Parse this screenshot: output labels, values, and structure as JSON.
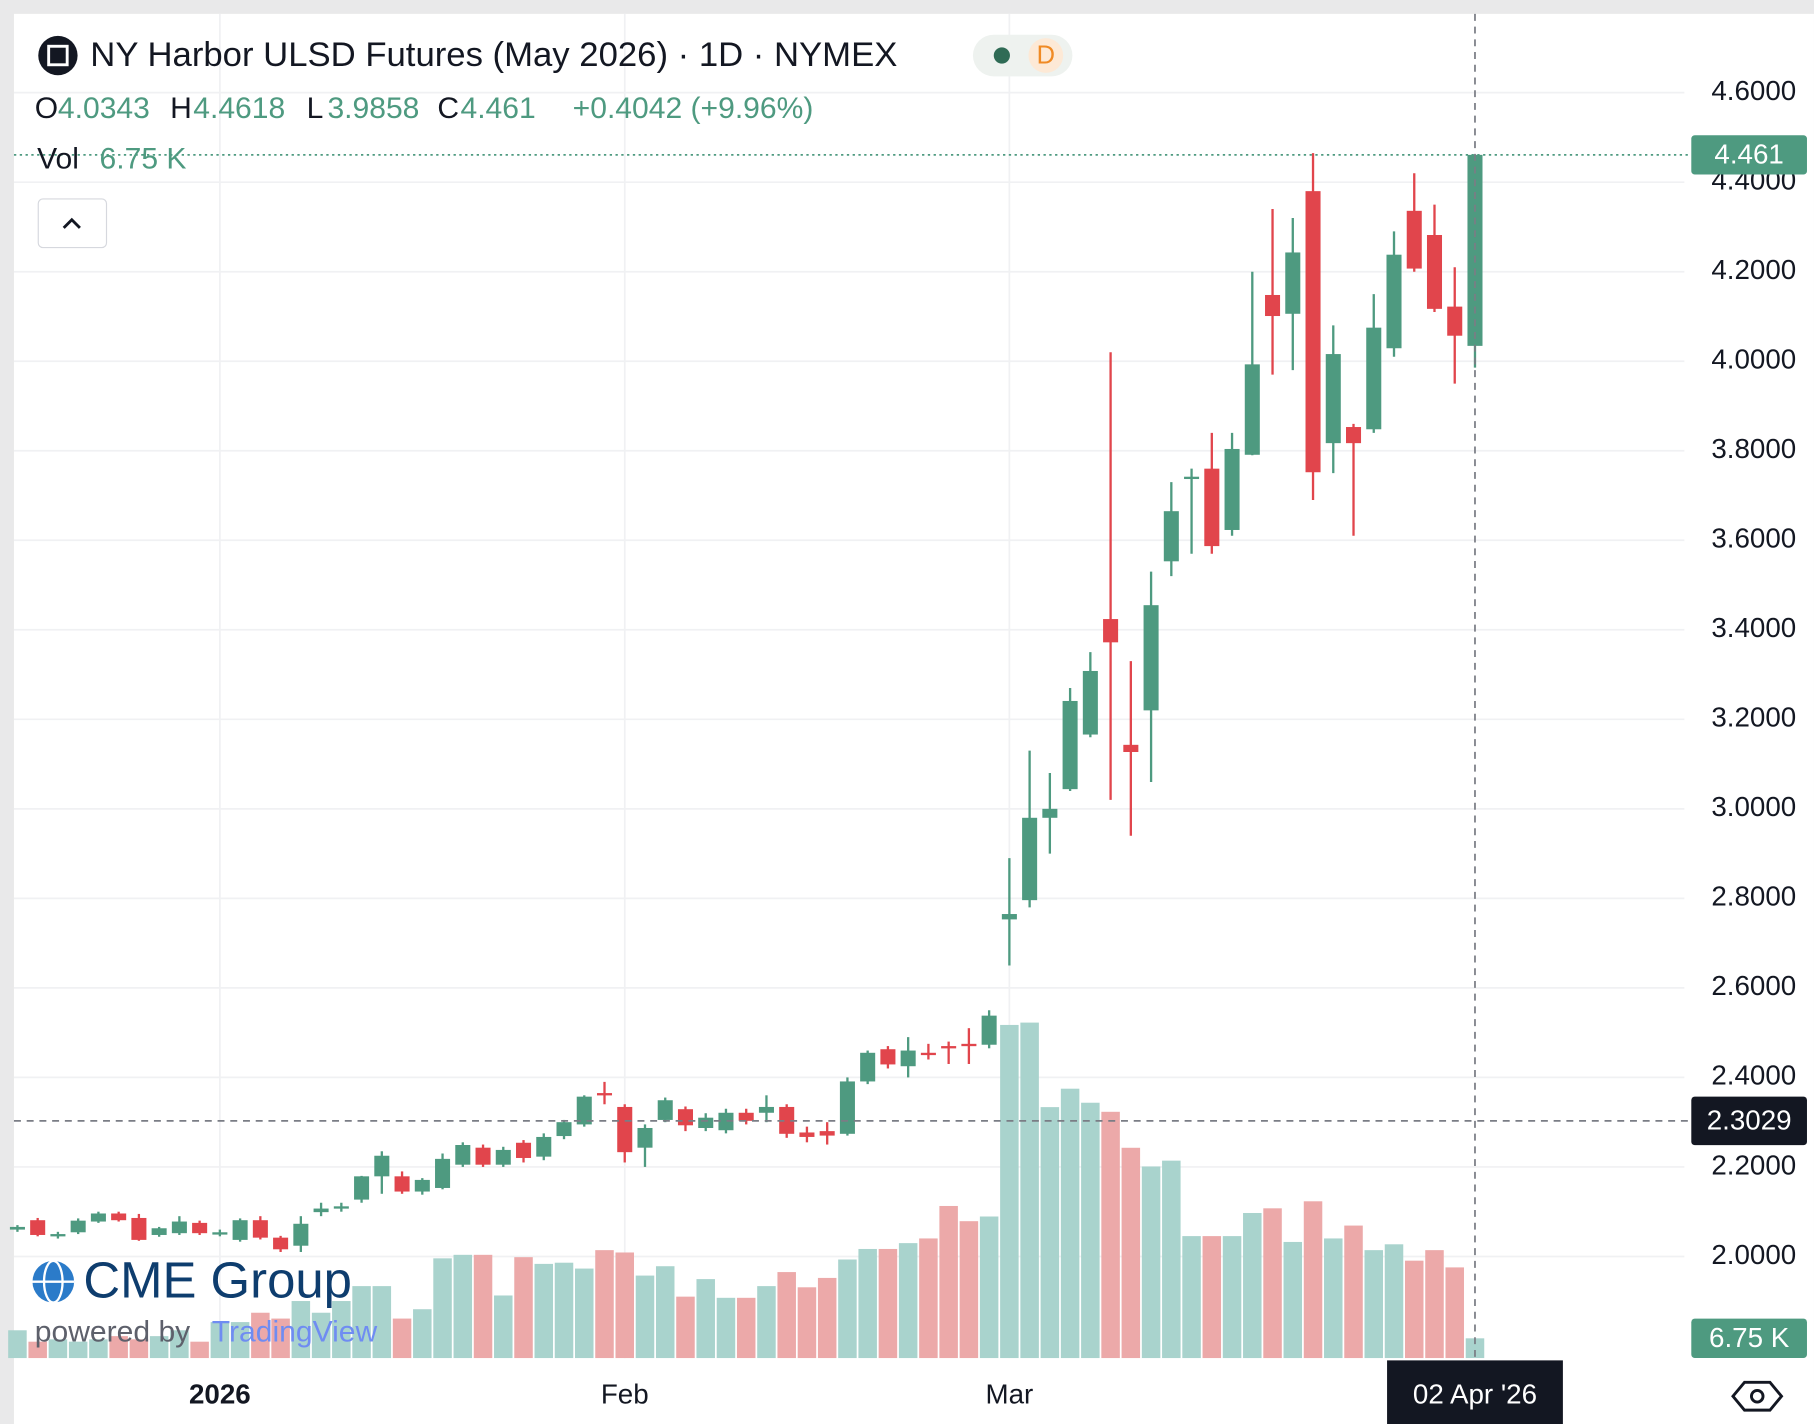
{
  "header": {
    "title": "NY Harbor ULSD Futures (May 2026) · 1D · NYMEX",
    "badge": "D"
  },
  "legend": {
    "open_label": "O",
    "high_label": "H",
    "low_label": "L",
    "close_label": "C",
    "change": "+0.4042 (+9.96%)",
    "volume_label": "Vol",
    "volume": "6.75 K"
  },
  "branding": {
    "logo": "CME Group",
    "powered_by": "powered by",
    "platform": "TradingView"
  },
  "chart_data": {
    "type": "candlestick",
    "categories": [
      null,
      null,
      null,
      null,
      null,
      null,
      null,
      null,
      null,
      null,
      "2026",
      null,
      null,
      null,
      null,
      null,
      null,
      null,
      null,
      null,
      null,
      null,
      null,
      null,
      null,
      null,
      null,
      null,
      null,
      null,
      "Feb",
      null,
      null,
      null,
      null,
      null,
      null,
      null,
      null,
      null,
      null,
      null,
      null,
      null,
      null,
      null,
      null,
      null,
      null,
      "Mar",
      null,
      null,
      null,
      null,
      null,
      null,
      null,
      null,
      null,
      null,
      null,
      null,
      null,
      null,
      null,
      null,
      null,
      null,
      null,
      null,
      null,
      null,
      "02 Apr '26"
    ],
    "open": [
      2.06,
      2.081,
      2.048,
      2.054,
      2.078,
      2.096,
      2.086,
      2.048,
      2.052,
      2.075,
      2.052,
      2.037,
      2.081,
      2.042,
      2.024,
      2.099,
      2.107,
      2.127,
      2.179,
      2.179,
      2.145,
      2.153,
      2.205,
      2.243,
      2.205,
      2.254,
      2.223,
      2.269,
      2.295,
      2.365,
      2.334,
      2.243,
      2.305,
      2.329,
      2.287,
      2.282,
      2.321,
      2.321,
      2.334,
      2.277,
      2.28,
      2.274,
      2.391,
      2.463,
      2.425,
      2.455,
      2.47,
      2.475,
      2.473,
      2.753,
      2.796,
      2.98,
      3.044,
      3.166,
      3.424,
      3.143,
      3.22,
      3.553,
      3.74,
      3.76,
      3.623,
      3.791,
      4.148,
      4.106,
      4.38,
      3.817,
      3.853,
      3.848,
      4.029,
      4.336,
      4.282,
      4.122,
      4.0343
    ],
    "high": [
      2.07,
      2.086,
      2.055,
      2.085,
      2.1,
      2.1,
      2.095,
      2.066,
      2.09,
      2.08,
      2.06,
      2.085,
      2.09,
      2.046,
      2.09,
      2.12,
      2.12,
      2.18,
      2.235,
      2.19,
      2.175,
      2.23,
      2.255,
      2.25,
      2.245,
      2.26,
      2.275,
      2.305,
      2.36,
      2.39,
      2.34,
      2.295,
      2.355,
      2.335,
      2.32,
      2.33,
      2.33,
      2.36,
      2.34,
      2.29,
      2.3,
      2.4,
      2.46,
      2.47,
      2.49,
      2.475,
      2.48,
      2.51,
      2.55,
      2.89,
      3.13,
      3.08,
      3.27,
      3.35,
      4.02,
      3.33,
      3.53,
      3.73,
      3.76,
      3.84,
      3.84,
      4.2,
      4.34,
      4.32,
      4.465,
      4.08,
      3.86,
      4.15,
      4.29,
      4.42,
      4.35,
      4.21,
      4.4618
    ],
    "low": [
      2.055,
      2.045,
      2.04,
      2.05,
      2.075,
      2.078,
      2.035,
      2.044,
      2.048,
      2.048,
      2.045,
      2.033,
      2.038,
      2.01,
      2.01,
      2.09,
      2.1,
      2.12,
      2.14,
      2.14,
      2.138,
      2.15,
      2.2,
      2.2,
      2.2,
      2.21,
      2.215,
      2.262,
      2.29,
      2.34,
      2.21,
      2.2,
      2.3,
      2.28,
      2.28,
      2.275,
      2.295,
      2.3,
      2.265,
      2.255,
      2.25,
      2.27,
      2.385,
      2.42,
      2.4,
      2.44,
      2.43,
      2.43,
      2.465,
      2.65,
      2.78,
      2.9,
      3.04,
      3.16,
      3.02,
      2.94,
      3.06,
      3.52,
      3.57,
      3.57,
      3.61,
      3.79,
      3.97,
      3.98,
      3.69,
      3.75,
      3.61,
      3.84,
      4.01,
      4.2,
      4.11,
      3.95,
      3.9858
    ],
    "close": [
      2.066,
      2.048,
      2.05,
      2.08,
      2.096,
      2.081,
      2.037,
      2.063,
      2.078,
      2.052,
      2.054,
      2.081,
      2.042,
      2.016,
      2.073,
      2.107,
      2.112,
      2.179,
      2.225,
      2.145,
      2.171,
      2.218,
      2.249,
      2.205,
      2.238,
      2.22,
      2.267,
      2.3,
      2.357,
      2.36,
      2.233,
      2.287,
      2.349,
      2.293,
      2.31,
      2.321,
      2.303,
      2.334,
      2.274,
      2.267,
      2.27,
      2.391,
      2.455,
      2.429,
      2.46,
      2.45,
      2.465,
      2.47,
      2.538,
      2.765,
      2.98,
      3.0,
      3.241,
      3.308,
      3.372,
      3.127,
      3.455,
      3.665,
      3.742,
      3.587,
      3.804,
      3.993,
      4.101,
      4.243,
      3.752,
      4.016,
      3.817,
      4.075,
      4.238,
      4.207,
      4.117,
      4.057,
      4.461
    ],
    "volume": [
      9.5,
      5.6,
      6.4,
      5.6,
      6.4,
      7.5,
      6.4,
      7.5,
      9.5,
      5.6,
      12.3,
      12.3,
      15.5,
      13.5,
      19.5,
      15.5,
      19.5,
      24.6,
      24.6,
      13.5,
      16.7,
      34.1,
      35.3,
      35.3,
      21.4,
      34.5,
      32.2,
      32.6,
      30.6,
      36.9,
      36.1,
      28.2,
      31.4,
      21.0,
      27.0,
      20.6,
      20.6,
      24.6,
      29.4,
      24.2,
      27.4,
      33.7,
      37.3,
      37.3,
      39.3,
      40.9,
      52.0,
      46.8,
      48.4,
      113.9,
      114.7,
      85.8,
      92.1,
      87.3,
      84.2,
      71.9,
      65.5,
      67.5,
      41.7,
      41.7,
      41.7,
      49.6,
      51.2,
      39.7,
      53.6,
      40.9,
      45.3,
      36.9,
      38.9,
      33.3,
      36.9,
      31.0,
      6.75
    ],
    "up_color": "#4e9a80",
    "down_color": "#e1454c",
    "up_volume_color": "#a9d3cd",
    "down_volume_color": "#eca9a9",
    "ylim": [
      1.773,
      4.776
    ],
    "yticks": [
      {
        "value": 2.0,
        "label": "2.0000"
      },
      {
        "value": 2.2,
        "label": "2.2000"
      },
      {
        "value": 2.4,
        "label": "2.4000"
      },
      {
        "value": 2.6,
        "label": "2.6000"
      },
      {
        "value": 2.8,
        "label": "2.8000"
      },
      {
        "value": 3.0,
        "label": "3.0000"
      },
      {
        "value": 3.2,
        "label": "3.2000"
      },
      {
        "value": 3.4,
        "label": "3.4000"
      },
      {
        "value": 3.6,
        "label": "3.6000"
      },
      {
        "value": 3.8,
        "label": "3.8000"
      },
      {
        "value": 4.0,
        "label": "4.0000"
      },
      {
        "value": 4.2,
        "label": "4.2000"
      },
      {
        "value": 4.4,
        "label": "4.4000"
      },
      {
        "value": 4.6,
        "label": "4.6000"
      }
    ],
    "crosshair_price": 2.3029,
    "grid": true
  }
}
